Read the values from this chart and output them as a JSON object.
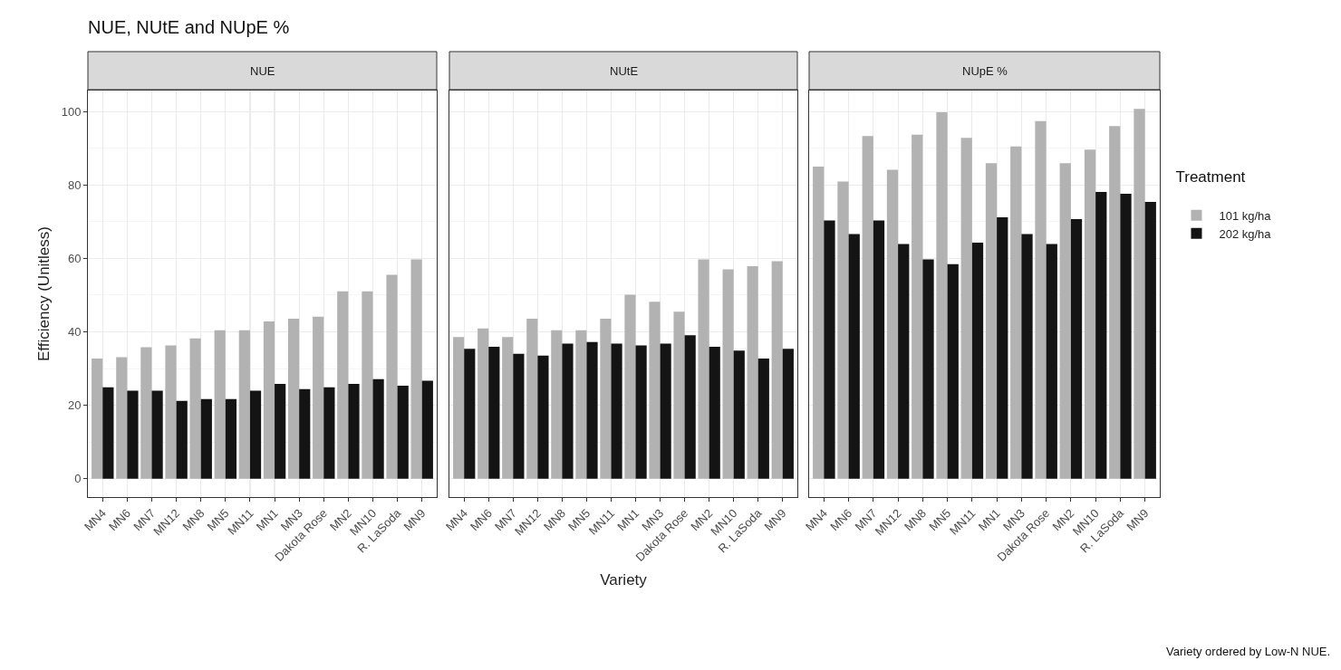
{
  "chart_data": [
    {
      "type": "bar",
      "title": "NUE, NUtE and NUpE %",
      "subtitle": "NUE",
      "ylabel": "Efficiency (Unitless)",
      "categories": [
        "MN4",
        "MN6",
        "MN7",
        "MN12",
        "MN8",
        "MN5",
        "MN11",
        "MN1",
        "MN3",
        "Dakota Rose",
        "MN2",
        "MN10",
        "R. LaSoda",
        "MN9"
      ],
      "series": [
        {
          "color": "#b2b2b2",
          "values": [
            32.7,
            33.1,
            35.8,
            36.3,
            38.2,
            40.4,
            40.4,
            42.8,
            43.6,
            44.1,
            51.0,
            51.0,
            55.5,
            59.7
          ]
        },
        {
          "color": "#141414",
          "values": [
            24.9,
            24.0,
            24.0,
            21.2,
            21.7,
            21.7,
            24.0,
            25.8,
            24.4,
            24.9,
            25.8,
            27.1,
            25.3,
            26.7
          ]
        }
      ],
      "ylim": [
        -5,
        105.7
      ],
      "yticks": [
        0,
        20,
        40,
        60,
        80,
        100
      ],
      "grid": true
    },
    {
      "type": "bar",
      "subtitle": "NUtE",
      "xlabel": "Variety",
      "categories": [
        "MN4",
        "MN6",
        "MN7",
        "MN12",
        "MN8",
        "MN5",
        "MN11",
        "MN1",
        "MN3",
        "Dakota Rose",
        "MN2",
        "MN10",
        "R. LaSoda",
        "MN9"
      ],
      "series": [
        {
          "color": "#b2b2b2",
          "values": [
            38.6,
            40.9,
            38.6,
            43.6,
            40.4,
            40.4,
            43.6,
            50.1,
            48.2,
            45.5,
            59.7,
            57.0,
            57.9,
            59.2
          ]
        },
        {
          "color": "#141414",
          "values": [
            35.4,
            35.9,
            34.0,
            33.5,
            36.8,
            37.2,
            36.8,
            36.3,
            36.8,
            39.1,
            35.9,
            34.9,
            32.7,
            35.4
          ]
        }
      ],
      "ylim": [
        -5,
        105.7
      ],
      "yticks": [
        0,
        20,
        40,
        60,
        80,
        100
      ],
      "grid": true,
      "tick_labels": "x"
    },
    {
      "type": "bar",
      "subtitle": "NUpE %",
      "legend_title": "Treatment",
      "annotations": [
        "Variety ordered by Low-N NUE."
      ],
      "categories": [
        "MN4",
        "MN6",
        "MN7",
        "MN12",
        "MN8",
        "MN5",
        "MN11",
        "MN1",
        "MN3",
        "Dakota Rose",
        "MN2",
        "MN10",
        "R. LaSoda",
        "MN9"
      ],
      "series": [
        {
          "name": "101 kg/ha",
          "color": "#b2b2b2",
          "values": [
            85.0,
            80.9,
            93.3,
            84.1,
            93.7,
            99.8,
            92.8,
            85.9,
            90.5,
            97.4,
            85.9,
            89.6,
            96.0,
            100.7
          ]
        },
        {
          "name": "202 kg/ha",
          "color": "#141414",
          "values": [
            70.3,
            66.6,
            70.3,
            63.9,
            59.7,
            58.4,
            64.3,
            71.2,
            66.6,
            63.9,
            70.7,
            78.1,
            77.6,
            75.4
          ]
        }
      ],
      "ylim": [
        -5,
        105.7
      ],
      "yticks": [
        0,
        20,
        40,
        60,
        80,
        100
      ],
      "grid": true,
      "tick_labels": "x",
      "legend": "right"
    }
  ]
}
